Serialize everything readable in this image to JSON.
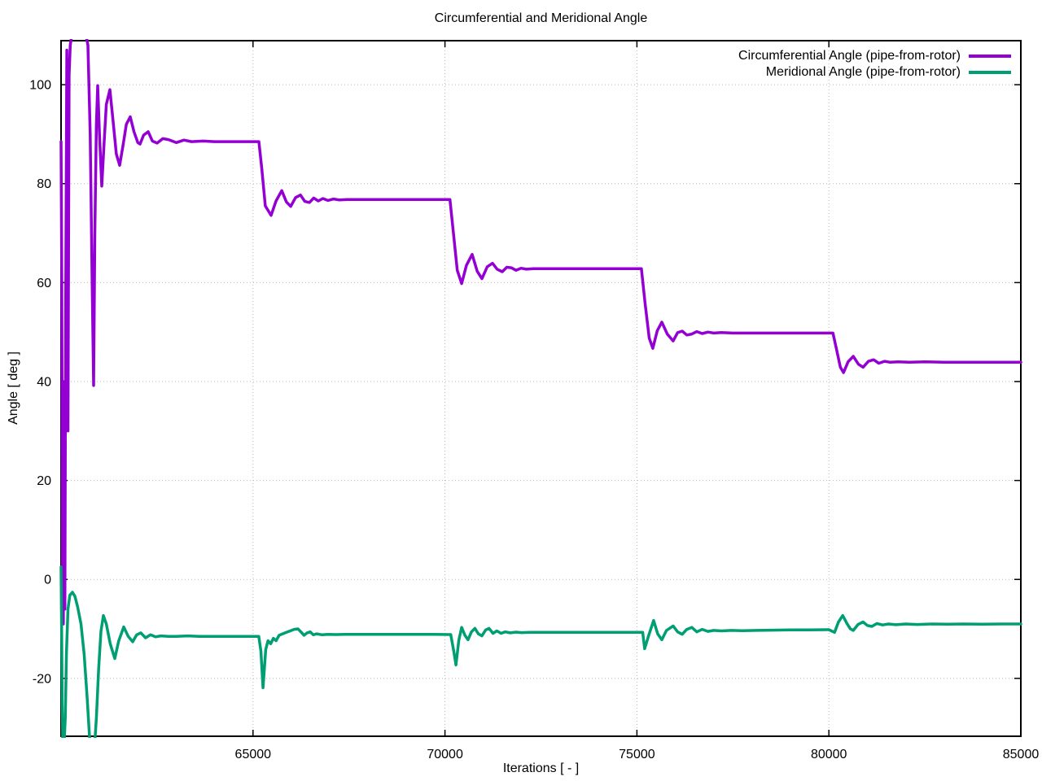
{
  "chart_data": {
    "type": "line",
    "title": "Circumferential and Meridional Angle",
    "xlabel": "Iterations [ - ]",
    "ylabel": "Angle [ deg ]",
    "xlim": [
      60000,
      85000
    ],
    "ylim": [
      -31.7,
      108.9
    ],
    "x_ticks": [
      65000,
      70000,
      75000,
      80000,
      85000
    ],
    "y_ticks": [
      -20,
      0,
      20,
      40,
      60,
      80,
      100
    ],
    "grid": true,
    "legend_position": "top-right-inside",
    "series": [
      {
        "name": "Circumferential Angle (pipe-from-rotor)",
        "color": "#9400d3",
        "points": [
          [
            60000,
            88.5
          ],
          [
            60020,
            60
          ],
          [
            60040,
            -5
          ],
          [
            60060,
            -9
          ],
          [
            60080,
            40
          ],
          [
            60100,
            -6
          ],
          [
            60120,
            55
          ],
          [
            60150,
            107
          ],
          [
            60180,
            30
          ],
          [
            60210,
            102
          ],
          [
            60240,
            108
          ],
          [
            60300,
            111
          ],
          [
            60450,
            113
          ],
          [
            60600,
            112
          ],
          [
            60700,
            108
          ],
          [
            60760,
            90
          ],
          [
            60810,
            60
          ],
          [
            60848,
            39.2
          ],
          [
            60880,
            70
          ],
          [
            60920,
            92
          ],
          [
            60954,
            99.8
          ],
          [
            61000,
            90
          ],
          [
            61060,
            79.5
          ],
          [
            61120,
            88
          ],
          [
            61180,
            96
          ],
          [
            61272,
            99
          ],
          [
            61350,
            93
          ],
          [
            61440,
            86
          ],
          [
            61527,
            83.7
          ],
          [
            61620,
            88
          ],
          [
            61700,
            92
          ],
          [
            61802,
            93.5
          ],
          [
            61900,
            90.5
          ],
          [
            62000,
            88.3
          ],
          [
            62057,
            88.0
          ],
          [
            62150,
            89.8
          ],
          [
            62269,
            90.5
          ],
          [
            62380,
            88.6
          ],
          [
            62502,
            88.2
          ],
          [
            62650,
            89.1
          ],
          [
            62800,
            88.9
          ],
          [
            63000,
            88.3
          ],
          [
            63200,
            88.8
          ],
          [
            63400,
            88.5
          ],
          [
            63700,
            88.6
          ],
          [
            64000,
            88.5
          ],
          [
            64400,
            88.5
          ],
          [
            64800,
            88.5
          ],
          [
            65153,
            88.5
          ],
          [
            65230,
            83
          ],
          [
            65320,
            75.5
          ],
          [
            65470,
            73.6
          ],
          [
            65600,
            76.5
          ],
          [
            65748,
            78.6
          ],
          [
            65870,
            76.3
          ],
          [
            65981,
            75.4
          ],
          [
            66110,
            77.2
          ],
          [
            66236,
            77.7
          ],
          [
            66350,
            76.4
          ],
          [
            66469,
            76.2
          ],
          [
            66580,
            77.1
          ],
          [
            66700,
            76.5
          ],
          [
            66820,
            77.0
          ],
          [
            66950,
            76.6
          ],
          [
            67100,
            76.9
          ],
          [
            67250,
            76.7
          ],
          [
            67450,
            76.8
          ],
          [
            67700,
            76.8
          ],
          [
            68100,
            76.8
          ],
          [
            68600,
            76.8
          ],
          [
            69200,
            76.8
          ],
          [
            69800,
            76.8
          ],
          [
            70130,
            76.8
          ],
          [
            70220,
            70
          ],
          [
            70320,
            62.5
          ],
          [
            70434,
            59.8
          ],
          [
            70560,
            63.5
          ],
          [
            70709,
            65.7
          ],
          [
            70840,
            62.3
          ],
          [
            70963,
            60.8
          ],
          [
            71100,
            63.2
          ],
          [
            71239,
            63.9
          ],
          [
            71360,
            62.7
          ],
          [
            71493,
            62.2
          ],
          [
            71610,
            63.1
          ],
          [
            71726,
            63.0
          ],
          [
            71850,
            62.5
          ],
          [
            71980,
            62.9
          ],
          [
            72120,
            62.7
          ],
          [
            72300,
            62.8
          ],
          [
            72600,
            62.8
          ],
          [
            73000,
            62.8
          ],
          [
            73500,
            62.8
          ],
          [
            74000,
            62.8
          ],
          [
            74500,
            62.8
          ],
          [
            75117,
            62.8
          ],
          [
            75210,
            56
          ],
          [
            75320,
            48.8
          ],
          [
            75414,
            46.7
          ],
          [
            75530,
            50.3
          ],
          [
            75648,
            52.0
          ],
          [
            75790,
            49.6
          ],
          [
            75944,
            48.2
          ],
          [
            76060,
            49.9
          ],
          [
            76178,
            50.2
          ],
          [
            76300,
            49.4
          ],
          [
            76430,
            49.6
          ],
          [
            76560,
            50.1
          ],
          [
            76700,
            49.7
          ],
          [
            76850,
            50.0
          ],
          [
            77000,
            49.8
          ],
          [
            77200,
            49.9
          ],
          [
            77500,
            49.8
          ],
          [
            77900,
            49.8
          ],
          [
            78400,
            49.8
          ],
          [
            79000,
            49.8
          ],
          [
            79600,
            49.8
          ],
          [
            80106,
            49.8
          ],
          [
            80200,
            46.5
          ],
          [
            80300,
            42.9
          ],
          [
            80381,
            41.8
          ],
          [
            80500,
            44
          ],
          [
            80636,
            45.1
          ],
          [
            80770,
            43.5
          ],
          [
            80890,
            42.9
          ],
          [
            81030,
            44.1
          ],
          [
            81166,
            44.4
          ],
          [
            81300,
            43.7
          ],
          [
            81450,
            44.1
          ],
          [
            81600,
            43.9
          ],
          [
            81800,
            44.0
          ],
          [
            82100,
            43.9
          ],
          [
            82500,
            44.0
          ],
          [
            83000,
            43.9
          ],
          [
            83500,
            43.9
          ],
          [
            84000,
            43.9
          ],
          [
            84500,
            43.9
          ],
          [
            85000,
            43.9
          ]
        ]
      },
      {
        "name": "Meridional Angle (pipe-from-rotor)",
        "color": "#009e73",
        "points": [
          [
            60000,
            2.5
          ],
          [
            60015,
            -10
          ],
          [
            60030,
            -25
          ],
          [
            60045,
            -33
          ],
          [
            60080,
            -33
          ],
          [
            60110,
            -28
          ],
          [
            60140,
            -15
          ],
          [
            60180,
            -6
          ],
          [
            60230,
            -3.2
          ],
          [
            60297,
            -2.6
          ],
          [
            60360,
            -3.4
          ],
          [
            60430,
            -5.5
          ],
          [
            60520,
            -9
          ],
          [
            60600,
            -15
          ],
          [
            60680,
            -24
          ],
          [
            60750,
            -33
          ],
          [
            60800,
            -35
          ],
          [
            60860,
            -35
          ],
          [
            60920,
            -28
          ],
          [
            60980,
            -18
          ],
          [
            61040,
            -10.5
          ],
          [
            61103,
            -7.3
          ],
          [
            61180,
            -9
          ],
          [
            61280,
            -13
          ],
          [
            61400,
            -16
          ],
          [
            61500,
            -12.5
          ],
          [
            61633,
            -9.6
          ],
          [
            61750,
            -11.5
          ],
          [
            61866,
            -12.6
          ],
          [
            61970,
            -11.2
          ],
          [
            62078,
            -10.8
          ],
          [
            62200,
            -11.8
          ],
          [
            62330,
            -11.2
          ],
          [
            62460,
            -11.6
          ],
          [
            62600,
            -11.4
          ],
          [
            62800,
            -11.5
          ],
          [
            63000,
            -11.5
          ],
          [
            63300,
            -11.4
          ],
          [
            63600,
            -11.5
          ],
          [
            64000,
            -11.5
          ],
          [
            64400,
            -11.5
          ],
          [
            64800,
            -11.5
          ],
          [
            65150,
            -11.5
          ],
          [
            65205,
            -14.5
          ],
          [
            65260,
            -21.9
          ],
          [
            65330,
            -14.2
          ],
          [
            65390,
            -12.4
          ],
          [
            65460,
            -13
          ],
          [
            65530,
            -11.9
          ],
          [
            65600,
            -12.4
          ],
          [
            65680,
            -11.3
          ],
          [
            65770,
            -11.0
          ],
          [
            65870,
            -10.7
          ],
          [
            65970,
            -10.4
          ],
          [
            66070,
            -10.1
          ],
          [
            66170,
            -10.0
          ],
          [
            66260,
            -10.7
          ],
          [
            66330,
            -11.3
          ],
          [
            66410,
            -10.8
          ],
          [
            66490,
            -10.6
          ],
          [
            66570,
            -11.2
          ],
          [
            66660,
            -11.0
          ],
          [
            66800,
            -11.2
          ],
          [
            66950,
            -11.1
          ],
          [
            67150,
            -11.15
          ],
          [
            67400,
            -11.1
          ],
          [
            67700,
            -11.1
          ],
          [
            68100,
            -11.1
          ],
          [
            68600,
            -11.1
          ],
          [
            69100,
            -11.1
          ],
          [
            69700,
            -11.1
          ],
          [
            70150,
            -11.15
          ],
          [
            70230,
            -14.5
          ],
          [
            70286,
            -17.3
          ],
          [
            70360,
            -12.3
          ],
          [
            70434,
            -9.7
          ],
          [
            70520,
            -11.3
          ],
          [
            70600,
            -12.2
          ],
          [
            70690,
            -10.6
          ],
          [
            70780,
            -9.9
          ],
          [
            70870,
            -11.0
          ],
          [
            70963,
            -11.4
          ],
          [
            71060,
            -10.2
          ],
          [
            71150,
            -9.9
          ],
          [
            71250,
            -10.9
          ],
          [
            71350,
            -10.4
          ],
          [
            71460,
            -10.9
          ],
          [
            71570,
            -10.6
          ],
          [
            71700,
            -10.8
          ],
          [
            71850,
            -10.65
          ],
          [
            72000,
            -10.75
          ],
          [
            72200,
            -10.7
          ],
          [
            72500,
            -10.7
          ],
          [
            72900,
            -10.7
          ],
          [
            73400,
            -10.7
          ],
          [
            73900,
            -10.7
          ],
          [
            74400,
            -10.7
          ],
          [
            74900,
            -10.7
          ],
          [
            75150,
            -10.7
          ],
          [
            75202,
            -14.0
          ],
          [
            75300,
            -11.5
          ],
          [
            75435,
            -8.3
          ],
          [
            75540,
            -11
          ],
          [
            75648,
            -12.2
          ],
          [
            75770,
            -10.3
          ],
          [
            75944,
            -9.4
          ],
          [
            76060,
            -10.6
          ],
          [
            76178,
            -11.1
          ],
          [
            76300,
            -10.1
          ],
          [
            76430,
            -9.7
          ],
          [
            76560,
            -10.6
          ],
          [
            76700,
            -10.1
          ],
          [
            76850,
            -10.5
          ],
          [
            77000,
            -10.3
          ],
          [
            77200,
            -10.4
          ],
          [
            77450,
            -10.3
          ],
          [
            77750,
            -10.35
          ],
          [
            78100,
            -10.3
          ],
          [
            78500,
            -10.25
          ],
          [
            79000,
            -10.2
          ],
          [
            79500,
            -10.2
          ],
          [
            80000,
            -10.15
          ],
          [
            80148,
            -10.7
          ],
          [
            80250,
            -8.6
          ],
          [
            80360,
            -7.3
          ],
          [
            80470,
            -8.9
          ],
          [
            80560,
            -10
          ],
          [
            80636,
            -10.3
          ],
          [
            80760,
            -9.1
          ],
          [
            80890,
            -8.6
          ],
          [
            81000,
            -9.3
          ],
          [
            81120,
            -9.5
          ],
          [
            81250,
            -8.9
          ],
          [
            81400,
            -9.2
          ],
          [
            81550,
            -9.0
          ],
          [
            81750,
            -9.15
          ],
          [
            82000,
            -9.0
          ],
          [
            82300,
            -9.1
          ],
          [
            82700,
            -9.0
          ],
          [
            83100,
            -9.05
          ],
          [
            83500,
            -9.0
          ],
          [
            84000,
            -9.05
          ],
          [
            84500,
            -9.0
          ],
          [
            85000,
            -9.0
          ]
        ]
      }
    ]
  }
}
